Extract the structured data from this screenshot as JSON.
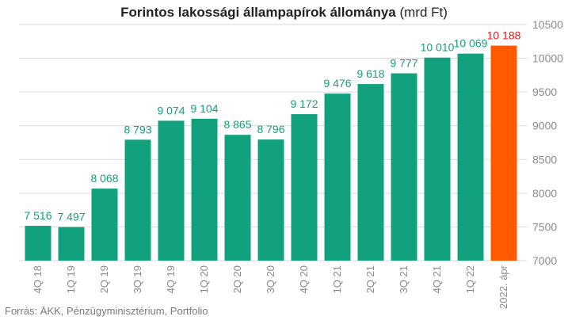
{
  "title": {
    "main": "Forintos lakossági állampapírok állománya",
    "unit": "(mrd Ft)"
  },
  "source": "Forrás: ÁKK, Pénzügyminisztérium, Portfolio",
  "colors": {
    "bar": "#12a17d",
    "highlight": "#ff5a00",
    "label": "#12a17d",
    "highlight_label": "#e8151b",
    "grid": "#d9d9d9",
    "axis_text": "#8c8c8c"
  },
  "chart_data": {
    "type": "bar",
    "title": "Forintos lakossági állampapírok állománya (mrd Ft)",
    "categories": [
      "4Q 18",
      "1Q 19",
      "2Q 19",
      "3Q 19",
      "4Q 19",
      "1Q 20",
      "2Q 20",
      "3Q 20",
      "4Q 20",
      "1Q 21",
      "2Q 21",
      "3Q 21",
      "4Q 21",
      "1Q 22",
      "2022. ápr"
    ],
    "values": [
      7516,
      7497,
      8068,
      8793,
      9074,
      9104,
      8865,
      8796,
      9172,
      9476,
      9618,
      9777,
      10010,
      10069,
      10188
    ],
    "value_labels": [
      "7 516",
      "7 497",
      "8 068",
      "8 793",
      "9 074",
      "9 104",
      "8 865",
      "8 796",
      "9 172",
      "9 476",
      "9 618",
      "9 777",
      "10 010",
      "10 069",
      "10 188"
    ],
    "highlight_index": 14,
    "ylim": [
      7000,
      10500
    ],
    "yticks": [
      7000,
      7500,
      8000,
      8500,
      9000,
      9500,
      10000,
      10500
    ],
    "y_axis_side": "right",
    "grid": true,
    "legend": "none"
  }
}
